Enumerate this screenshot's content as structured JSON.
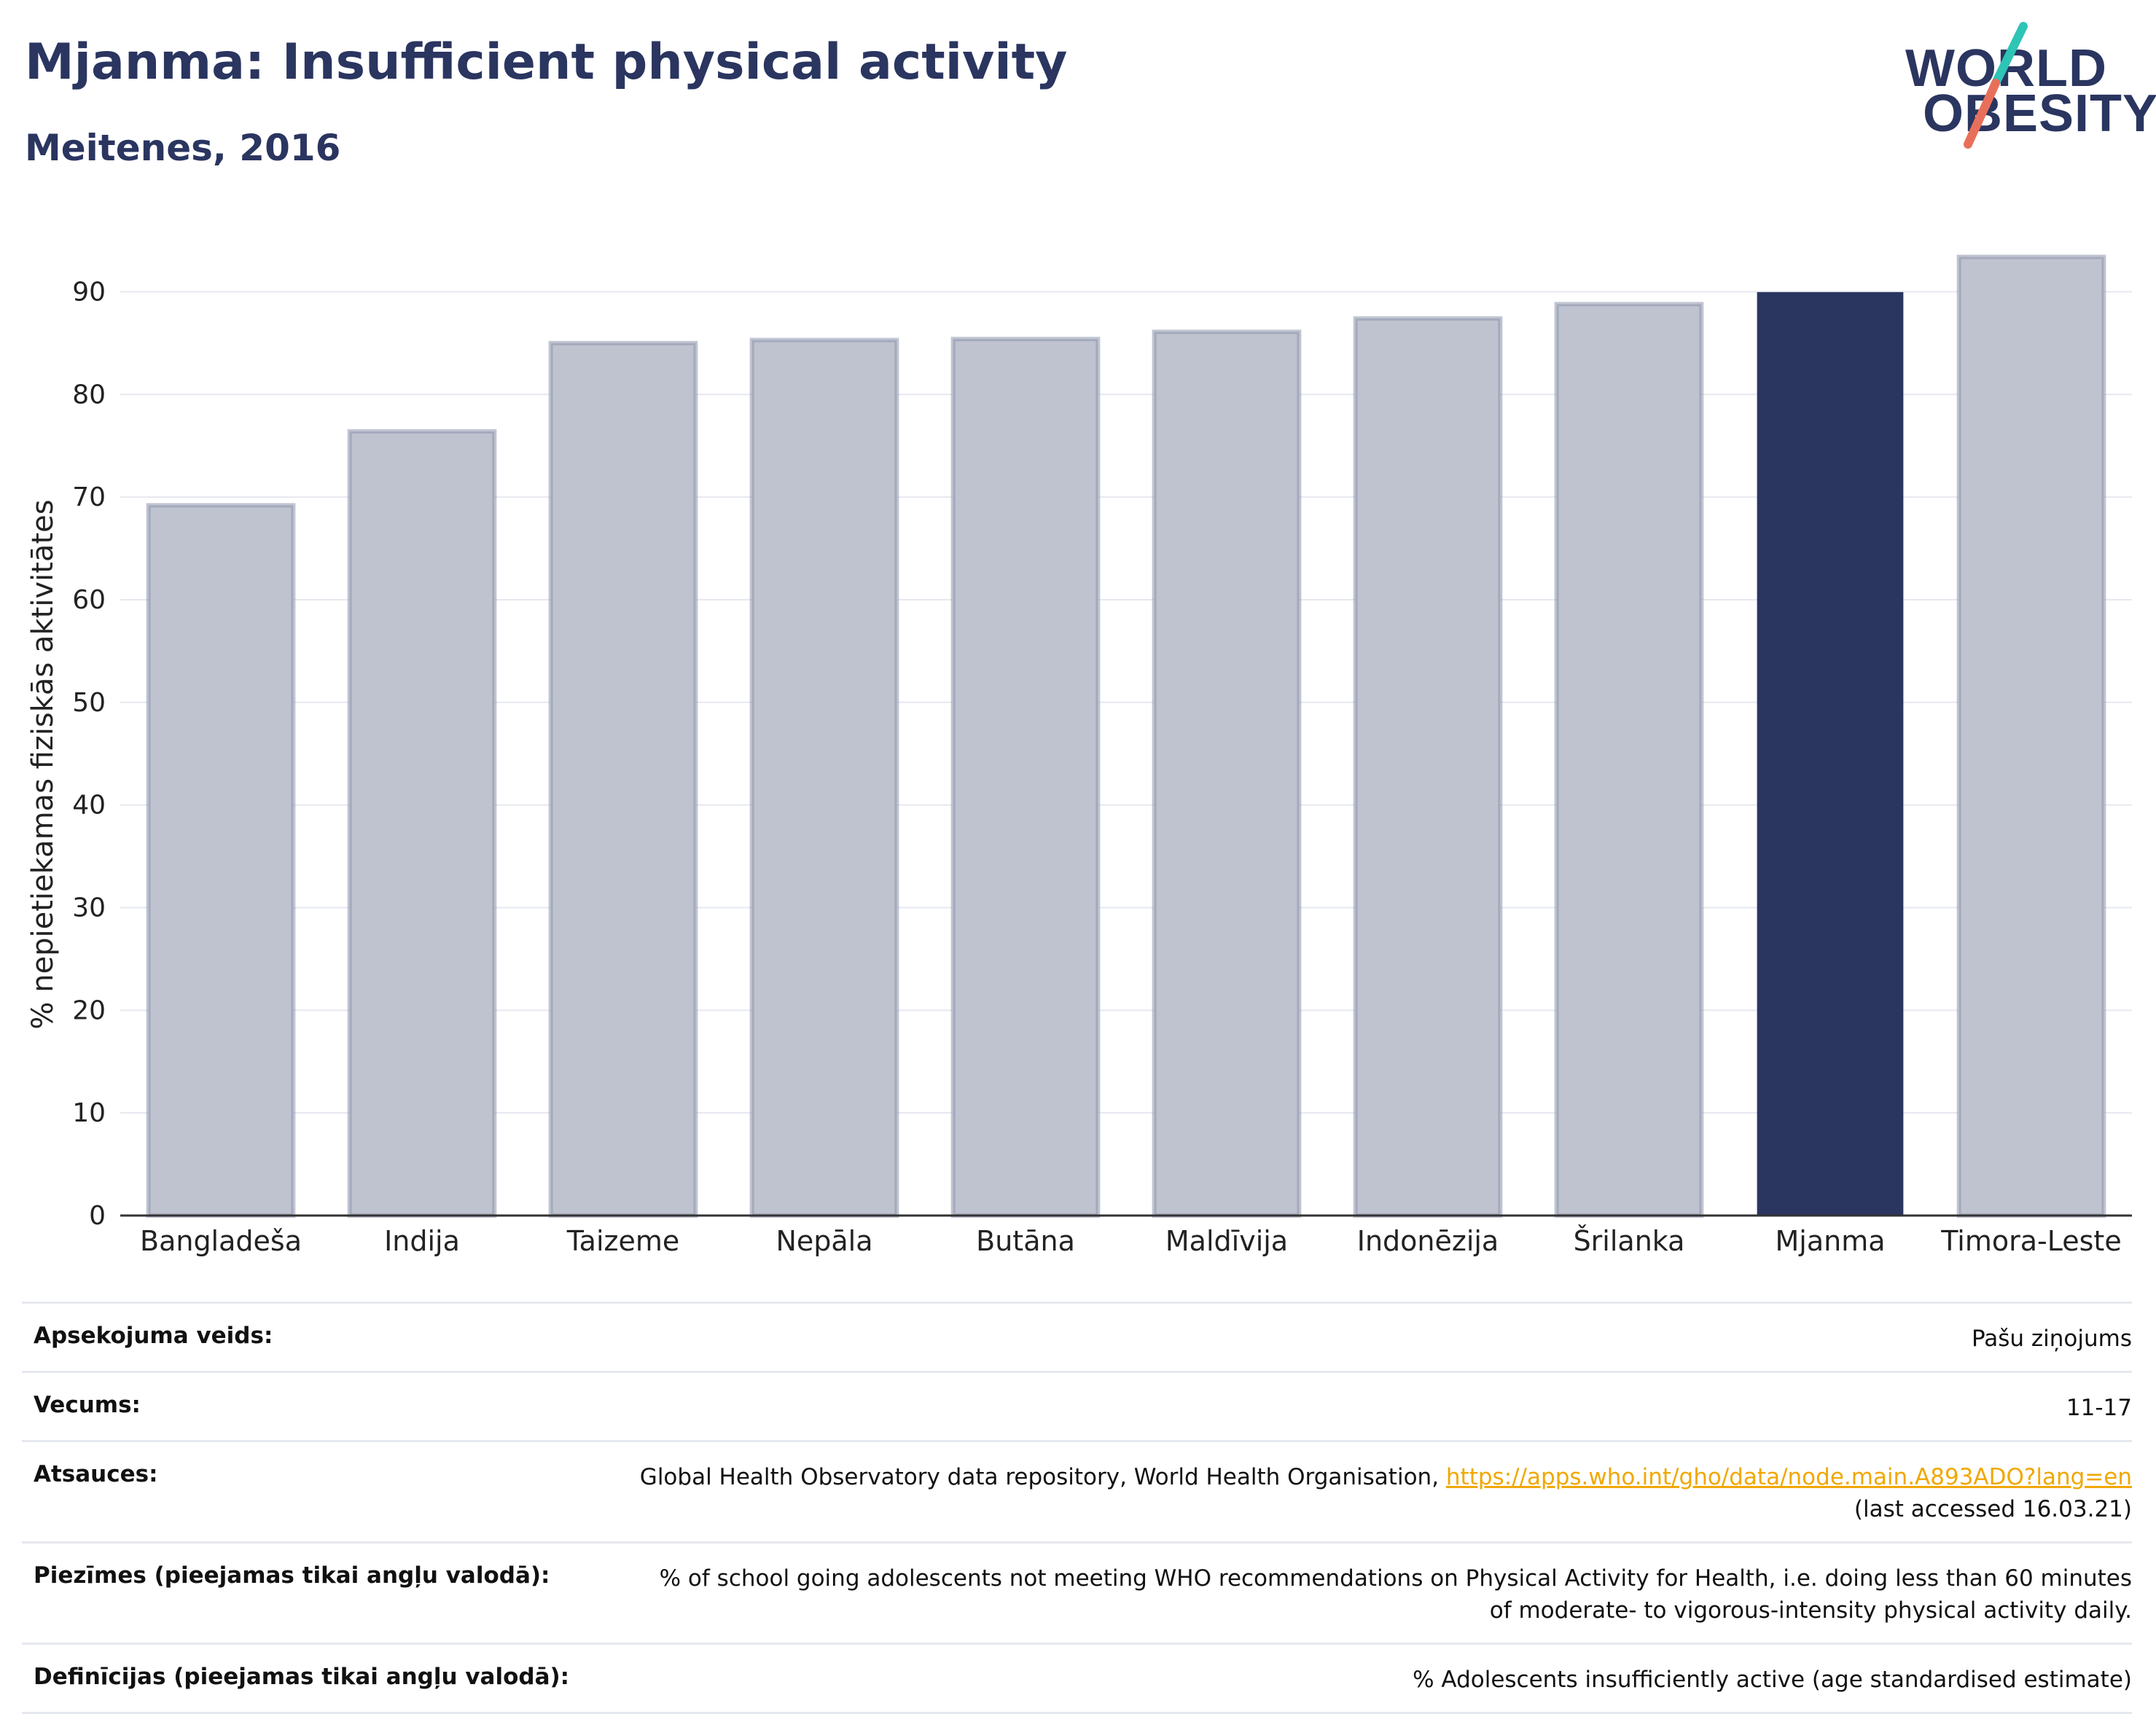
{
  "header": {
    "title": "Mjanma: Insufficient physical activity",
    "subtitle": "Meitenes, 2016",
    "logo_line1": "WORLD",
    "logo_line2": "OBESITY"
  },
  "colors": {
    "highlight": "#2a3560",
    "other_bar": "#bfc3cf",
    "other_bar_edge": "#8e95ad",
    "title": "#2a3560",
    "grid": "#e6e8f0",
    "link": "#f0a800",
    "logo_teal": "#2ec4b6",
    "logo_coral": "#e8705a"
  },
  "chart_data": {
    "type": "bar",
    "title": "Mjanma: Insufficient physical activity",
    "subtitle": "Meitenes, 2016",
    "xlabel": "",
    "ylabel": "% nepietiekamas fiziskās aktivitātes",
    "ylim": [
      0,
      95
    ],
    "yticks": [
      0,
      10,
      20,
      30,
      40,
      50,
      60,
      70,
      80,
      90
    ],
    "grid": true,
    "legend": "none",
    "categories": [
      "Bangladeša",
      "Indija",
      "Taizeme",
      "Nepāla",
      "Butāna",
      "Maldīvija",
      "Indonēzija",
      "Šrilanka",
      "Mjanma",
      "Timora-Leste"
    ],
    "values": [
      69.2,
      76.4,
      85.0,
      85.3,
      85.4,
      86.1,
      87.4,
      88.8,
      89.9,
      93.4
    ],
    "highlight": "Mjanma"
  },
  "meta": [
    {
      "label": "Apsekojuma veids:",
      "value": "Pašu ziņojums"
    },
    {
      "label": "Vecums:",
      "value": "11-17"
    },
    {
      "label": "Atsauces:",
      "value": "Global Health Observatory data repository, World Health Organisation, ",
      "link": "https://apps.who.int/gho/data/node.main.A893ADO?lang=en",
      "value2": "(last accessed 16.03.21)"
    },
    {
      "label": "Piezīmes (pieejamas tikai angļu valodā):",
      "value": "% of school going adolescents not meeting WHO recommendations on Physical Activity for Health, i.e. doing less than 60 minutes of moderate- to vigorous-intensity physical activity daily."
    },
    {
      "label": "Definīcijas (pieejamas tikai angļu valodā):",
      "value": "% Adolescents insufficiently active (age standardised estimate)"
    }
  ]
}
